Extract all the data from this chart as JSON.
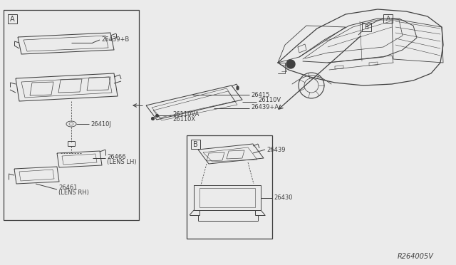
{
  "bg_color": "#ebebeb",
  "line_color": "#404040",
  "ref_code": "R264005V",
  "box_A_label": "A",
  "box_B_label": "B",
  "car_label_A": "A",
  "car_label_B": "B",
  "part_26439B": "26439+B",
  "part_26410J": "26410J",
  "part_26466": "26466",
  "part_26466_sub": "(LENS LH)",
  "part_26461": "26461",
  "part_26461_sub": "(LENS RH)",
  "part_26415": "26415",
  "part_26110V": "26110V",
  "part_26110VA": "26110VA",
  "part_26110X": "26110X",
  "part_26439A": "26439+A",
  "part_26439": "26439",
  "part_26430": "26430"
}
